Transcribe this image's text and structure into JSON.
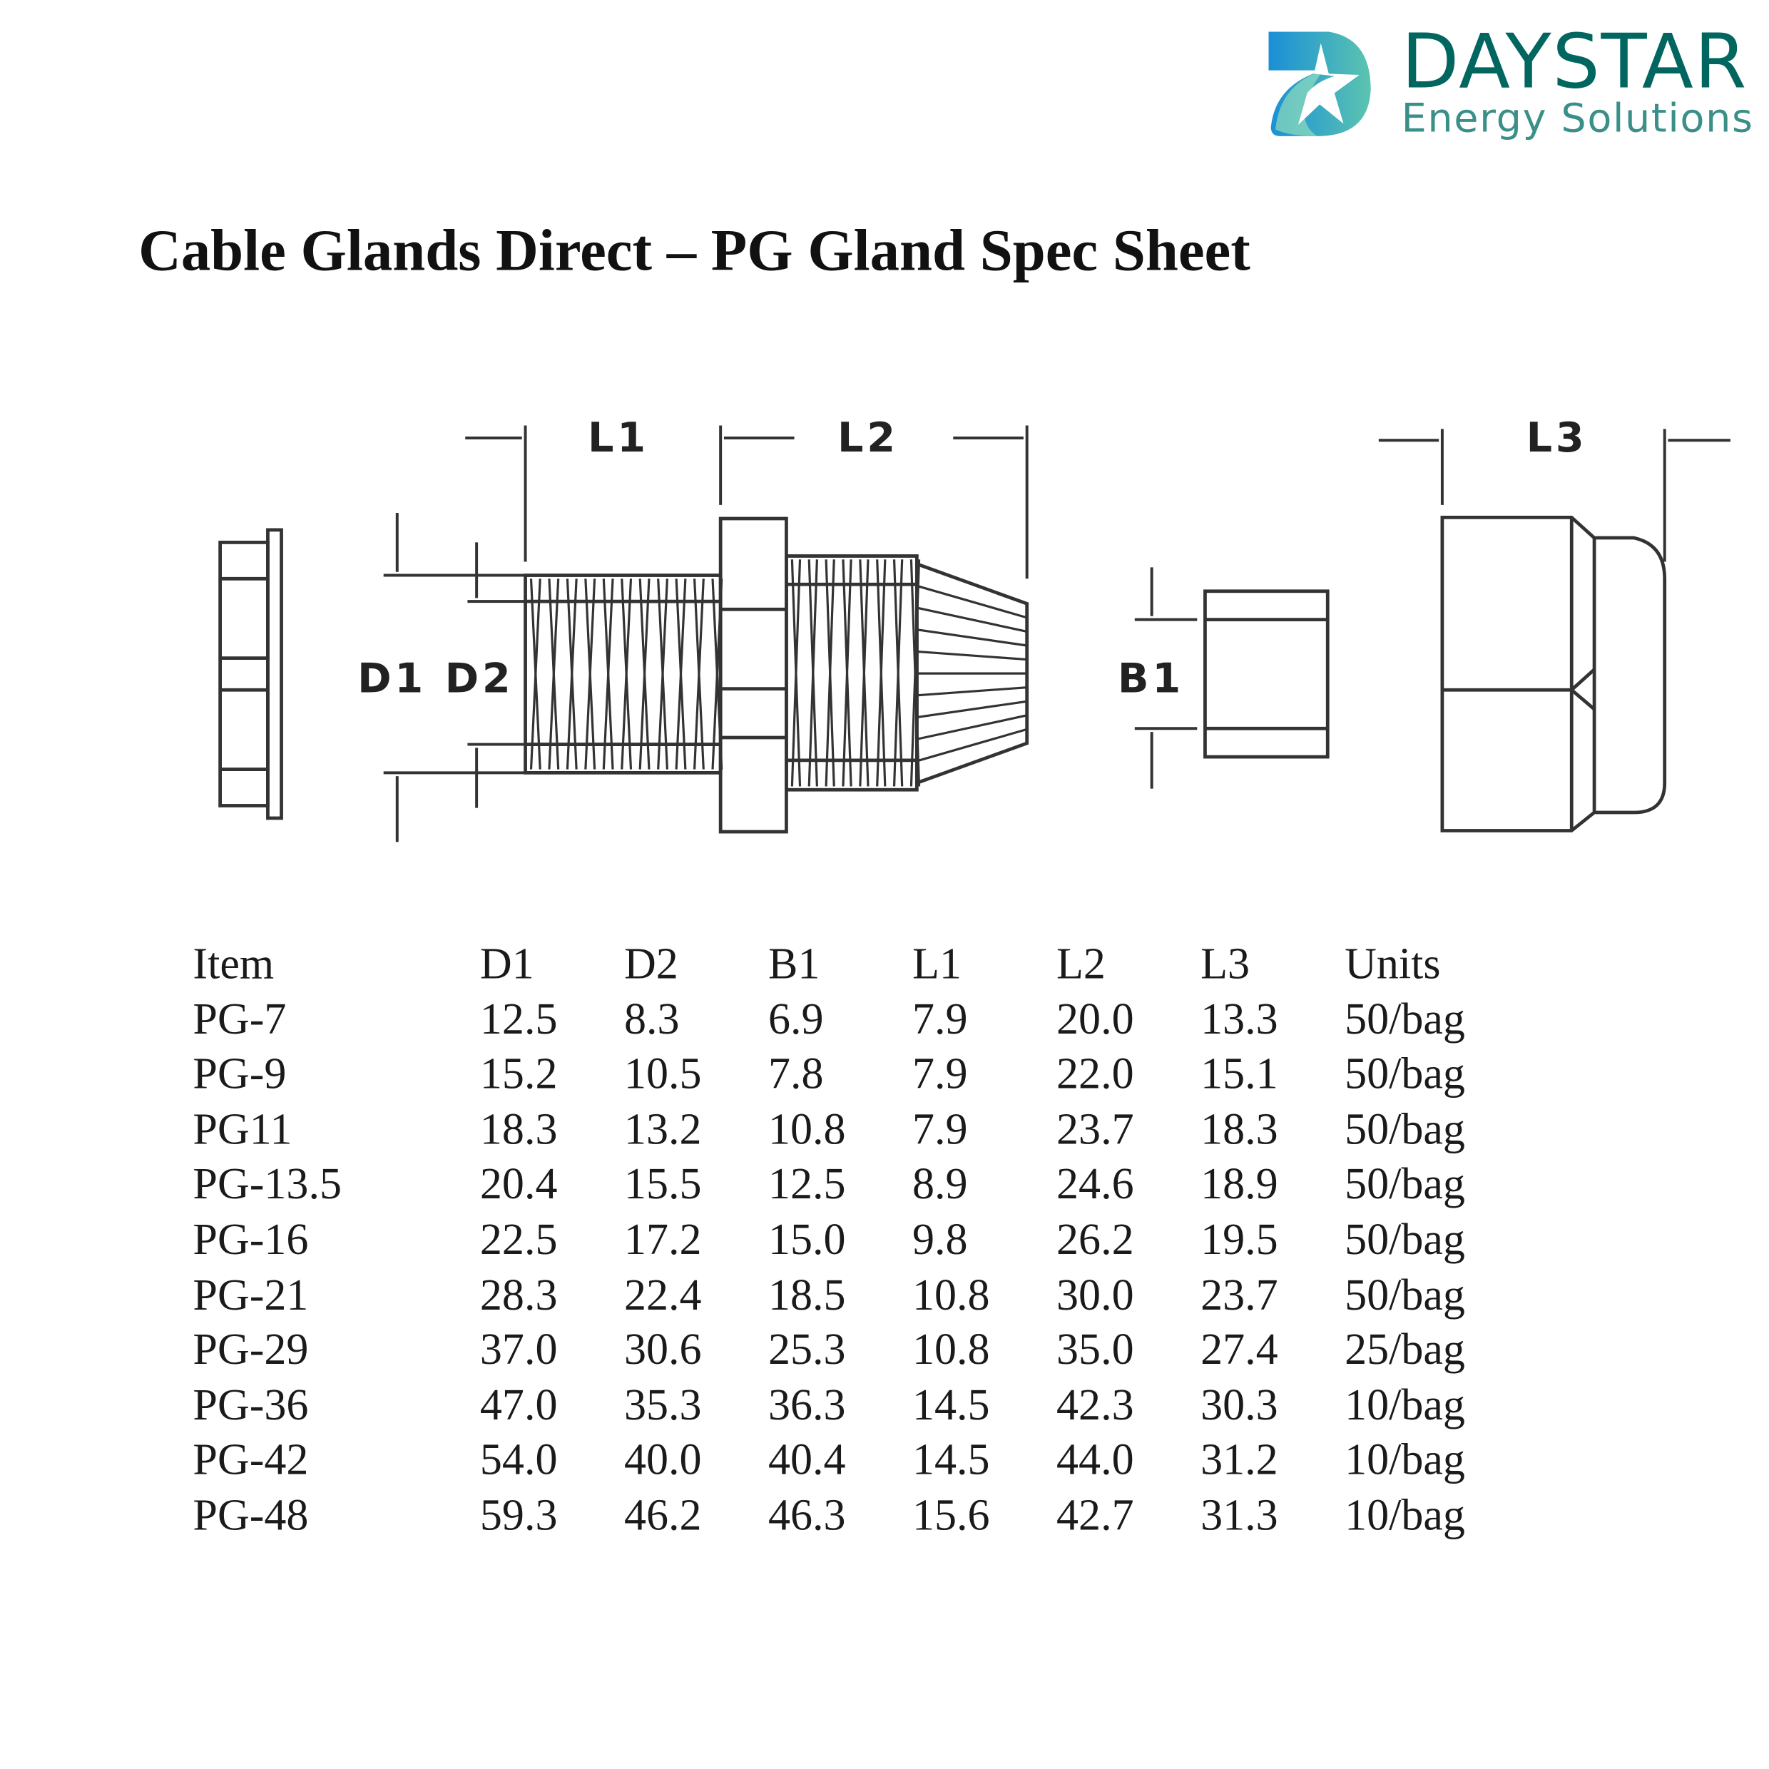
{
  "logo": {
    "brand": "DAYSTAR",
    "tagline": "Energy Solutions",
    "colors": {
      "brand": "#00665f",
      "tagline": "#3a8f88",
      "icon_blue": "#1a8fd6",
      "icon_teal": "#5cc4b0"
    }
  },
  "title": "Cable Glands Direct – PG Gland Spec Sheet",
  "diagram": {
    "labels": {
      "l1": "L1",
      "l2": "L2",
      "l3": "L3",
      "d1": "D1",
      "d2": "D2",
      "b1": "B1"
    }
  },
  "table": {
    "headers": [
      "Item",
      "D1",
      "D2",
      "B1",
      "L1",
      "L2",
      "L3",
      "Units"
    ],
    "rows": [
      [
        "PG-7",
        "12.5",
        "8.3",
        "6.9",
        "7.9",
        "20.0",
        "13.3",
        "50/bag"
      ],
      [
        "PG-9",
        "15.2",
        "10.5",
        "7.8",
        "7.9",
        "22.0",
        "15.1",
        "50/bag"
      ],
      [
        "PG11",
        "18.3",
        "13.2",
        "10.8",
        "7.9",
        "23.7",
        "18.3",
        "50/bag"
      ],
      [
        "PG-13.5",
        "20.4",
        "15.5",
        "12.5",
        "8.9",
        "24.6",
        "18.9",
        "50/bag"
      ],
      [
        "PG-16",
        "22.5",
        "17.2",
        "15.0",
        "9.8",
        "26.2",
        "19.5",
        "50/bag"
      ],
      [
        "PG-21",
        "28.3",
        "22.4",
        "18.5",
        "10.8",
        "30.0",
        "23.7",
        "50/bag"
      ],
      [
        "PG-29",
        "37.0",
        "30.6",
        "25.3",
        "10.8",
        "35.0",
        "27.4",
        "25/bag"
      ],
      [
        "PG-36",
        "47.0",
        "35.3",
        "36.3",
        "14.5",
        "42.3",
        "30.3",
        "10/bag"
      ],
      [
        "PG-42",
        "54.0",
        "40.0",
        "40.4",
        "14.5",
        "44.0",
        "31.2",
        "10/bag"
      ],
      [
        "PG-48",
        "59.3",
        "46.2",
        "46.3",
        "15.6",
        "42.7",
        "31.3",
        "10/bag"
      ]
    ]
  }
}
